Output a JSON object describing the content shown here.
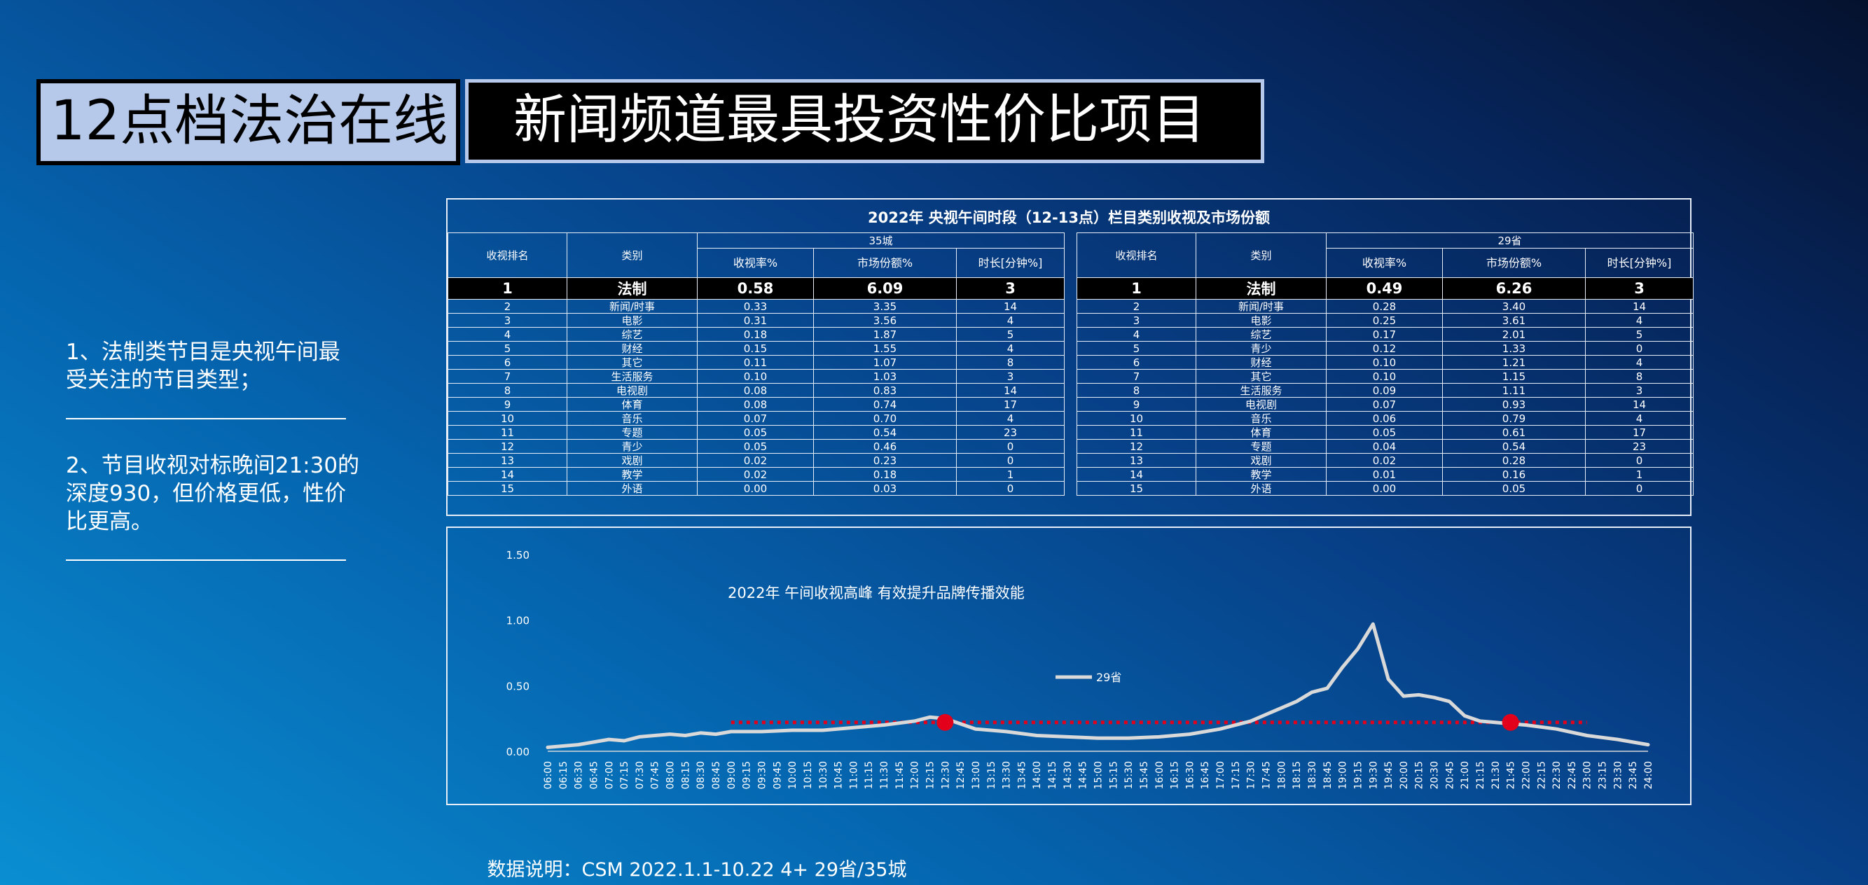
{
  "header": {
    "left_title": "12点档法治在线",
    "right_title": "新闻频道最具投资性价比项目"
  },
  "notes": [
    "1、法制类节目是央视午间最受关注的节目类型；",
    "2、节目收视对标晚间21:30的深度930，但价格更低，性价比更高。"
  ],
  "table": {
    "title": "2022年 央视午间时段（12-13点）栏目类别收视及市场份额",
    "headers": {
      "rank": "收视排名",
      "category": "类别",
      "rating": "收视率%",
      "share": "市场份额%",
      "duration": "时长[分钟%]"
    },
    "left": {
      "group": "35城",
      "rows": [
        [
          "1",
          "法制",
          "0.58",
          "6.09",
          "3"
        ],
        [
          "2",
          "新闻/时事",
          "0.33",
          "3.35",
          "14"
        ],
        [
          "3",
          "电影",
          "0.31",
          "3.56",
          "4"
        ],
        [
          "4",
          "综艺",
          "0.18",
          "1.87",
          "5"
        ],
        [
          "5",
          "财经",
          "0.15",
          "1.55",
          "4"
        ],
        [
          "6",
          "其它",
          "0.11",
          "1.07",
          "8"
        ],
        [
          "7",
          "生活服务",
          "0.10",
          "1.03",
          "3"
        ],
        [
          "8",
          "电视剧",
          "0.08",
          "0.83",
          "14"
        ],
        [
          "9",
          "体育",
          "0.08",
          "0.74",
          "17"
        ],
        [
          "10",
          "音乐",
          "0.07",
          "0.70",
          "4"
        ],
        [
          "11",
          "专题",
          "0.05",
          "0.54",
          "23"
        ],
        [
          "12",
          "青少",
          "0.05",
          "0.46",
          "0"
        ],
        [
          "13",
          "戏剧",
          "0.02",
          "0.23",
          "0"
        ],
        [
          "14",
          "教学",
          "0.02",
          "0.18",
          "1"
        ],
        [
          "15",
          "外语",
          "0.00",
          "0.03",
          "0"
        ]
      ]
    },
    "right": {
      "group": "29省",
      "rows": [
        [
          "1",
          "法制",
          "0.49",
          "6.26",
          "3"
        ],
        [
          "2",
          "新闻/时事",
          "0.28",
          "3.40",
          "14"
        ],
        [
          "3",
          "电影",
          "0.25",
          "3.61",
          "4"
        ],
        [
          "4",
          "综艺",
          "0.17",
          "2.01",
          "5"
        ],
        [
          "5",
          "青少",
          "0.12",
          "1.33",
          "0"
        ],
        [
          "6",
          "财经",
          "0.10",
          "1.21",
          "4"
        ],
        [
          "7",
          "其它",
          "0.10",
          "1.15",
          "8"
        ],
        [
          "8",
          "生活服务",
          "0.09",
          "1.11",
          "3"
        ],
        [
          "9",
          "电视剧",
          "0.07",
          "0.93",
          "14"
        ],
        [
          "10",
          "音乐",
          "0.06",
          "0.79",
          "4"
        ],
        [
          "11",
          "体育",
          "0.05",
          "0.61",
          "17"
        ],
        [
          "12",
          "专题",
          "0.04",
          "0.54",
          "23"
        ],
        [
          "13",
          "戏剧",
          "0.02",
          "0.28",
          "0"
        ],
        [
          "14",
          "教学",
          "0.01",
          "0.16",
          "1"
        ],
        [
          "15",
          "外语",
          "0.00",
          "0.05",
          "0"
        ]
      ]
    }
  },
  "chart_data": {
    "type": "line",
    "title": "2022年 午间收视高峰 有效提升品牌传播效能",
    "legend_position": "center",
    "ylim": [
      0,
      1.5
    ],
    "y_ticks": [
      "0.00",
      "0.50",
      "1.00",
      "1.50"
    ],
    "x_ticks": [
      "06:00",
      "06:15",
      "06:30",
      "06:45",
      "07:00",
      "07:15",
      "07:30",
      "07:45",
      "08:00",
      "08:15",
      "08:30",
      "08:45",
      "09:00",
      "09:15",
      "09:30",
      "09:45",
      "10:00",
      "10:15",
      "10:30",
      "10:45",
      "11:00",
      "11:15",
      "11:30",
      "11:45",
      "12:00",
      "12:15",
      "12:30",
      "12:45",
      "13:00",
      "13:15",
      "13:30",
      "13:45",
      "14:00",
      "14:15",
      "14:30",
      "14:45",
      "15:00",
      "15:15",
      "15:30",
      "15:45",
      "16:00",
      "16:15",
      "16:30",
      "16:45",
      "17:00",
      "17:15",
      "17:30",
      "17:45",
      "18:00",
      "18:15",
      "18:30",
      "18:45",
      "19:00",
      "19:15",
      "19:30",
      "19:45",
      "20:00",
      "20:15",
      "20:30",
      "20:45",
      "21:00",
      "21:15",
      "21:30",
      "21:45",
      "22:00",
      "22:15",
      "22:30",
      "22:45",
      "23:00",
      "23:15",
      "23:30",
      "23:45",
      "24:00"
    ],
    "series": [
      {
        "name": "29省",
        "color": "#d9d9d9",
        "points": [
          [
            "06:00",
            0.03
          ],
          [
            "06:30",
            0.05
          ],
          [
            "07:00",
            0.09
          ],
          [
            "07:15",
            0.08
          ],
          [
            "07:30",
            0.11
          ],
          [
            "07:45",
            0.12
          ],
          [
            "08:00",
            0.13
          ],
          [
            "08:15",
            0.12
          ],
          [
            "08:30",
            0.14
          ],
          [
            "08:45",
            0.13
          ],
          [
            "09:00",
            0.15
          ],
          [
            "09:30",
            0.15
          ],
          [
            "10:00",
            0.16
          ],
          [
            "10:30",
            0.16
          ],
          [
            "11:00",
            0.18
          ],
          [
            "11:30",
            0.2
          ],
          [
            "12:00",
            0.23
          ],
          [
            "12:15",
            0.26
          ],
          [
            "12:30",
            0.25
          ],
          [
            "12:45",
            0.21
          ],
          [
            "13:00",
            0.17
          ],
          [
            "13:30",
            0.15
          ],
          [
            "14:00",
            0.12
          ],
          [
            "14:30",
            0.11
          ],
          [
            "15:00",
            0.1
          ],
          [
            "15:30",
            0.1
          ],
          [
            "16:00",
            0.11
          ],
          [
            "16:30",
            0.13
          ],
          [
            "17:00",
            0.17
          ],
          [
            "17:30",
            0.23
          ],
          [
            "17:45",
            0.28
          ],
          [
            "18:00",
            0.33
          ],
          [
            "18:15",
            0.38
          ],
          [
            "18:30",
            0.45
          ],
          [
            "18:45",
            0.48
          ],
          [
            "19:00",
            0.64
          ],
          [
            "19:15",
            0.78
          ],
          [
            "19:30",
            0.97
          ],
          [
            "19:45",
            0.55
          ],
          [
            "20:00",
            0.42
          ],
          [
            "20:15",
            0.43
          ],
          [
            "20:30",
            0.41
          ],
          [
            "20:45",
            0.38
          ],
          [
            "21:00",
            0.27
          ],
          [
            "21:15",
            0.23
          ],
          [
            "21:30",
            0.22
          ],
          [
            "21:45",
            0.21
          ],
          [
            "22:00",
            0.2
          ],
          [
            "22:30",
            0.17
          ],
          [
            "23:00",
            0.12
          ],
          [
            "23:30",
            0.09
          ],
          [
            "24:00",
            0.05
          ]
        ]
      }
    ],
    "reference_line": {
      "value": 0.22,
      "from": "09:00",
      "to": "23:00",
      "color": "#e3001b"
    },
    "markers": [
      {
        "x": "12:30",
        "y": 0.22
      },
      {
        "x": "21:45",
        "y": 0.22
      }
    ]
  },
  "footer": "数据说明：CSM   2022.1.1-10.22   4+   29省/35城"
}
